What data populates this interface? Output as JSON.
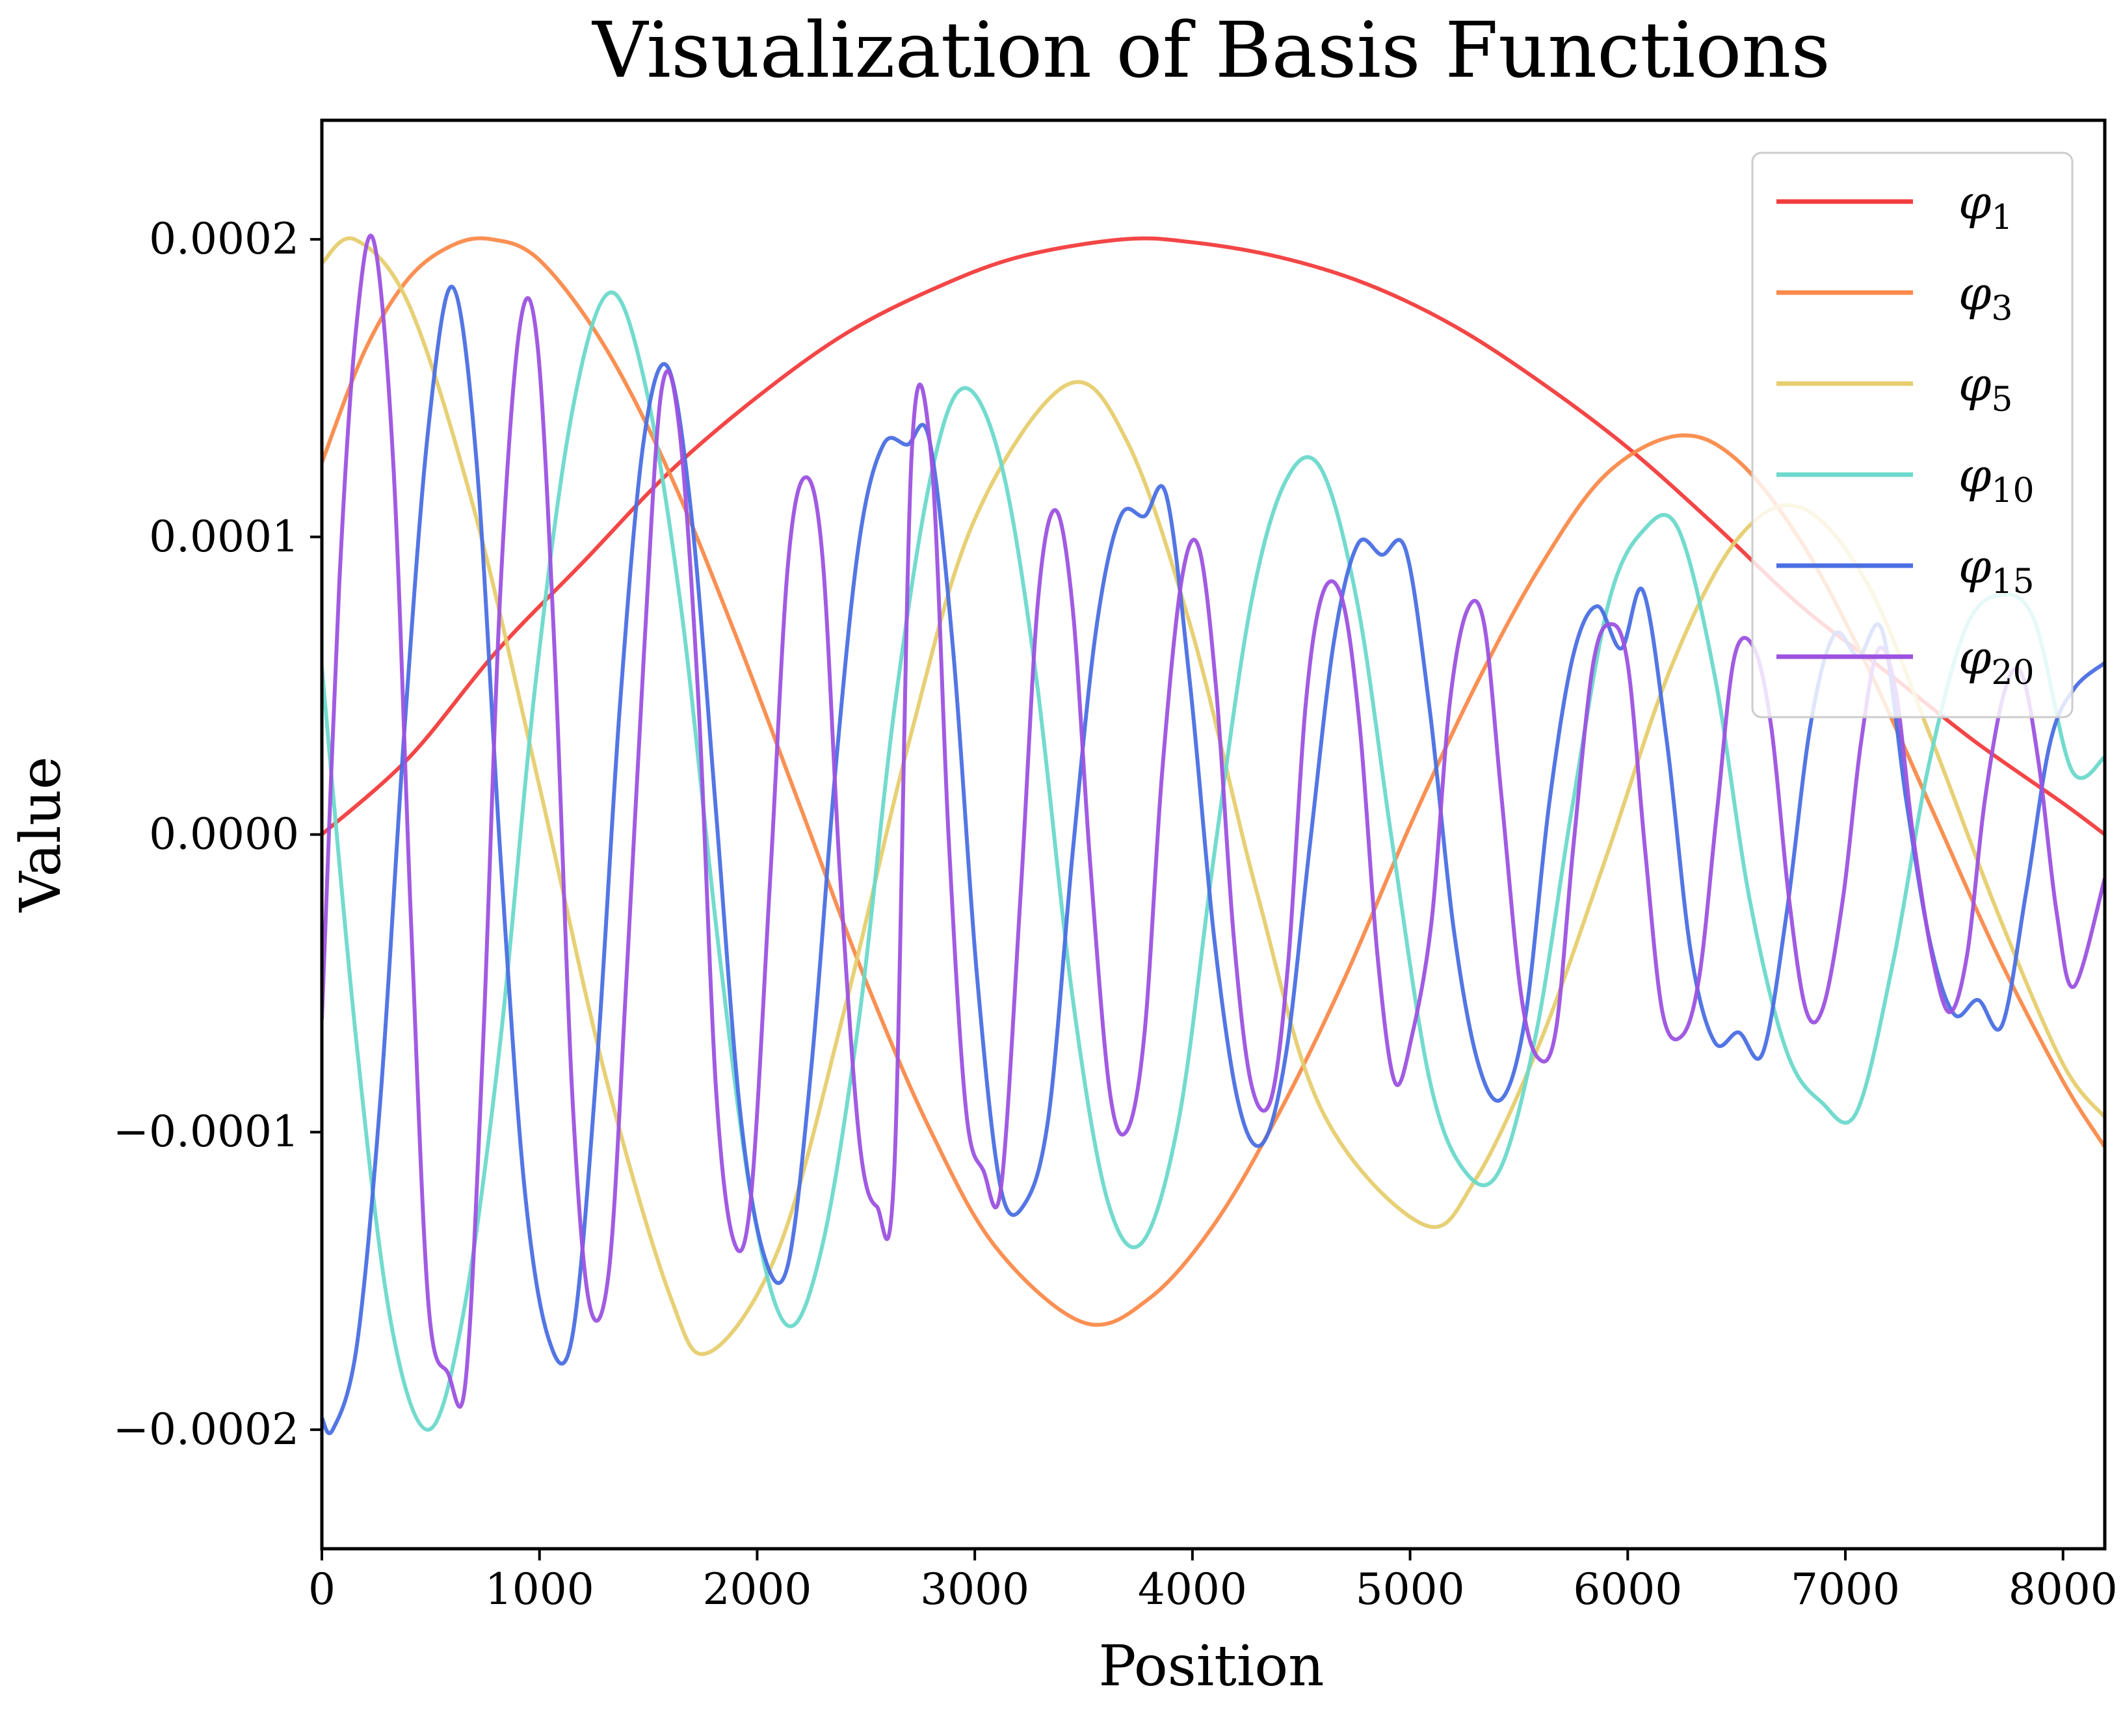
{
  "chart_data": {
    "type": "line",
    "title": "Visualization of Basis Functions",
    "xlabel": "Position",
    "ylabel": "Value",
    "xlim": [
      0,
      8192
    ],
    "ylim": [
      -0.00024,
      0.00024
    ],
    "xticks": [
      0,
      1000,
      2000,
      3000,
      4000,
      5000,
      6000,
      7000,
      8000
    ],
    "xtick_labels": [
      "0",
      "1000",
      "2000",
      "3000",
      "4000",
      "5000",
      "6000",
      "7000",
      "8000"
    ],
    "yticks": [
      0.0002,
      0.0001,
      0.0,
      -0.0001,
      -0.0002
    ],
    "ytick_labels": [
      "0.0002",
      "0.0001",
      "0.0000",
      "−0.0001",
      "−0.0002"
    ],
    "grid": false,
    "legend_position": "top-right",
    "series": [
      {
        "name": "φ1",
        "color": "#f23c3c",
        "x": [
          0,
          400,
          800,
          1200,
          1600,
          2000,
          2400,
          2800,
          3200,
          3680,
          4000,
          4400,
          4800,
          5200,
          5600,
          6000,
          6400,
          6800,
          7200,
          7600,
          8000,
          8192
        ],
        "y": [
          0.0,
          2.58e-05,
          6.13e-05,
          9.15e-05,
          0.000122,
          0.000147,
          0.000168,
          0.000183,
          0.000194,
          0.0002,
          0.000199,
          0.000194,
          0.000185,
          0.000171,
          0.000152,
          0.00013,
          0.000104,
          7.65e-05,
          5.4e-05,
          3.1e-05,
          1.05e-05,
          0.0
        ]
      },
      {
        "name": "φ3",
        "color": "#fa8a4a",
        "x": [
          0,
          200,
          400,
          600,
          780,
          1000,
          1300,
          1600,
          1900,
          2200,
          2500,
          2800,
          3100,
          3500,
          3800,
          4100,
          4400,
          4700,
          5000,
          5300,
          5600,
          5900,
          6230,
          6500,
          6800,
          7100,
          7400,
          7700,
          8000,
          8192
        ],
        "y": [
          0.000125,
          0.000163,
          0.000187,
          0.000198,
          0.0002,
          0.000193,
          0.000164,
          0.000121,
          6.72e-05,
          9e-06,
          -4.93e-05,
          -0.0001,
          -0.000139,
          -0.000164,
          -0.000156,
          -0.000131,
          -9.33e-05,
          -4.82e-05,
          3e-06,
          4.99e-05,
          9.03e-05,
          0.000121,
          0.000134,
          0.000126,
          9.8e-05,
          5.67e-05,
          8.1e-06,
          -4.06e-05,
          -8.29e-05,
          -0.000105
        ]
      },
      {
        "name": "φ5",
        "color": "#e6ce6e",
        "x": [
          0,
          150,
          400,
          700,
          1000,
          1300,
          1600,
          1780,
          2100,
          2400,
          2700,
          3000,
          3420,
          3700,
          4000,
          4300,
          4600,
          5060,
          5300,
          5600,
          5900,
          6200,
          6500,
          6790,
          7100,
          7400,
          7700,
          8000,
          8192
        ],
        "y": [
          0.000192,
          0.0002,
          0.000178,
          0.000109,
          1.61e-05,
          -8.03e-05,
          -0.000155,
          -0.000174,
          -0.000139,
          -5.93e-05,
          3.17e-05,
          0.000106,
          0.000151,
          0.000132,
          6.77e-05,
          -2.05e-05,
          -9.35e-05,
          -0.000131,
          -0.000116,
          -6.93e-05,
          -7.8e-06,
          5.63e-05,
          9.89e-05,
          0.00011,
          8.44e-05,
          3.13e-05,
          -2.63e-05,
          -7.71e-05,
          -9.5e-05
        ]
      },
      {
        "name": "φ10",
        "color": "#6bd9cb",
        "x": [
          0,
          160,
          320,
          490,
          650,
          820,
          980,
          1150,
          1320,
          1480,
          1650,
          1820,
          1980,
          2140,
          2300,
          2470,
          2630,
          2800,
          2950,
          3120,
          3280,
          3450,
          3610,
          3770,
          3940,
          4100,
          4270,
          4430,
          4590,
          4760,
          4920,
          5090,
          5250,
          5410,
          5580,
          5740,
          5910,
          6070,
          6230,
          6400,
          6560,
          6730,
          6890,
          7050,
          7220,
          7380,
          7550,
          7710,
          7870,
          8040,
          8192
        ],
        "y": [
          5.61e-05,
          -7.07e-05,
          -0.000165,
          -0.0002,
          -0.000161,
          -6.94e-05,
          4.97e-05,
          0.000142,
          0.000182,
          0.000153,
          7.64e-05,
          -3.6e-05,
          -0.000125,
          -0.000165,
          -0.000138,
          -6.09e-05,
          4.18e-05,
          0.000121,
          0.00015,
          0.000125,
          5.41e-05,
          -5.52e-05,
          -0.000123,
          -0.000137,
          -9.47e-05,
          -6.8e-06,
          7.78e-05,
          0.000119,
          0.000123,
          7.68e-05,
          -3.7e-06,
          -8.25e-05,
          -0.000113,
          -0.000113,
          -6.65e-05,
          7e-06,
          7.72e-05,
          0.000102,
          0.000103,
          5.32e-05,
          -2.17e-05,
          -7.28e-05,
          -8.99e-05,
          -9.35e-05,
          -4.26e-05,
          2.22e-05,
          6.88e-05,
          8.04e-05,
          7.17e-05,
          2.16e-05,
          2.6e-05
        ]
      },
      {
        "name": "φ15",
        "color": "#4a6fe3",
        "x": [
          0,
          50,
          160,
          270,
          380,
          490,
          600,
          710,
          820,
          930,
          1040,
          1150,
          1260,
          1370,
          1480,
          1590,
          1700,
          1810,
          1920,
          2030,
          2140,
          2250,
          2360,
          2470,
          2580,
          2690,
          2790,
          2900,
          3010,
          3120,
          3230,
          3340,
          3450,
          3560,
          3670,
          3780,
          3880,
          3990,
          4100,
          4210,
          4320,
          4430,
          4540,
          4650,
          4760,
          4870,
          4980,
          5090,
          5200,
          5310,
          5420,
          5530,
          5640,
          5750,
          5860,
          5970,
          6070,
          6180,
          6290,
          6400,
          6510,
          6620,
          6730,
          6840,
          6950,
          7060,
          7170,
          7280,
          7390,
          7500,
          7610,
          7720,
          7830,
          7940,
          8050,
          8192
        ],
        "y": [
          -0.000196,
          -0.0002,
          -0.000172,
          -8.78e-05,
          3.58e-05,
          0.000137,
          0.000184,
          0.000126,
          -6.7e-06,
          -0.000118,
          -0.000169,
          -0.000169,
          -8.12e-05,
          4.39e-05,
          0.000133,
          0.000157,
          0.000106,
          8.7e-06,
          -9.19e-05,
          -0.000141,
          -0.000145,
          -7.74e-05,
          2.17e-05,
          9.91e-05,
          0.000131,
          0.000131,
          0.000133,
          6.23e-05,
          -4.74e-05,
          -0.000119,
          -0.000124,
          -9.41e-05,
          -5.8e-06,
          7.02e-05,
          0.000107,
          0.000107,
          0.000114,
          4.99e-05,
          -3.47e-05,
          -8.99e-05,
          -0.000104,
          -7.37e-05,
          -3.3e-06,
          6.48e-05,
          9.76e-05,
          9.4e-05,
          9.56e-05,
          4.21e-05,
          -3.15e-05,
          -7.61e-05,
          -8.89e-05,
          -6.12e-05,
          1.08e-05,
          6.03e-05,
          7.67e-05,
          6.25e-05,
          8.19e-05,
          3.12e-05,
          -3.97e-05,
          -6.98e-05,
          -6.65e-05,
          -7.35e-05,
          -2.66e-05,
          3.69e-05,
          6.72e-05,
          5.99e-05,
          6.84e-05,
          1.14e-05,
          -3.65e-05,
          -6.04e-05,
          -5.56e-05,
          -6.41e-05,
          -1.96e-05,
          3.06e-05,
          4.89e-05,
          5.77e-05
        ]
      },
      {
        "name": "φ20",
        "color": "#9c52e0",
        "x": [
          0,
          80,
          160,
          240,
          330,
          410,
          490,
          580,
          660,
          740,
          820,
          910,
          990,
          1070,
          1150,
          1230,
          1320,
          1400,
          1480,
          1560,
          1640,
          1730,
          1810,
          1890,
          1970,
          2060,
          2140,
          2220,
          2300,
          2380,
          2470,
          2550,
          2630,
          2710,
          2800,
          2880,
          2960,
          3040,
          3120,
          3210,
          3290,
          3370,
          3450,
          3530,
          3620,
          3700,
          3780,
          3860,
          3950,
          4030,
          4110,
          4190,
          4270,
          4360,
          4440,
          4520,
          4600,
          4690,
          4770,
          4850,
          4930,
          5010,
          5100,
          5180,
          5260,
          5340,
          5420,
          5510,
          5590,
          5670,
          5750,
          5840,
          5920,
          6000,
          6080,
          6160,
          6250,
          6330,
          6410,
          6490,
          6580,
          6660,
          6740,
          6820,
          6900,
          6990,
          7070,
          7150,
          7230,
          7310,
          7400,
          7480,
          7560,
          7640,
          7730,
          7810,
          7890,
          7970,
          8050,
          8192
        ],
        "y": [
          -6.21e-05,
          8.43e-05,
          0.000172,
          0.000199,
          0.000122,
          -2.96e-05,
          -0.000158,
          -0.000181,
          -0.000184,
          -7.16e-05,
          8.17e-05,
          0.000171,
          0.000165,
          6.07e-05,
          -8.66e-05,
          -0.000158,
          -0.000146,
          -4.77e-05,
          6.1e-05,
          0.000149,
          0.000138,
          4.51e-05,
          -8.43e-05,
          -0.000136,
          -0.000123,
          -1.48e-05,
          8.94e-05,
          0.00012,
          9.36e-05,
          -1.25e-05,
          -0.000103,
          -0.000125,
          -0.000113,
          0.000128,
          0.000127,
          -1.4e-06,
          -9.28e-05,
          -0.000113,
          -0.000119,
          -2.09e-05,
          7.83e-05,
          0.000109,
          7.58e-05,
          -9.6e-06,
          -8.63e-05,
          -9.94e-05,
          -6.67e-05,
          2.01e-05,
          8.53e-05,
          9.63e-05,
          4.81e-05,
          -3.47e-05,
          -8.37e-05,
          -8.92e-05,
          -4.31e-05,
          4.33e-05,
          8.13e-05,
          7.86e-05,
          3.53e-05,
          -4.05e-05,
          -8.32e-05,
          -6.72e-05,
          -2.83e-05,
          4.26e-05,
          7.49e-05,
          7.08e-05,
          1.26e-05,
          -5.38e-05,
          -7.52e-05,
          -6.58e-05,
          -4.2e-06,
          5.68e-05,
          7.07e-05,
          5.73e-05,
          -5.3e-06,
          -5.99e-05,
          -6.76e-05,
          -4.72e-05,
          7.6e-06,
          5.96e-05,
          6.27e-05,
          3.59e-05,
          -2.09e-05,
          -5.92e-05,
          -5.76e-05,
          -2.09e-05,
          2.98e-05,
          6.2e-05,
          4.89e-05,
          3e-07,
          -4.13e-05,
          -5.97e-05,
          -4.01e-05,
          1.1e-05,
          4.78e-05,
          5.41e-05,
          2.31e-05,
          -2.58e-05,
          -5.11e-05,
          -1.47e-05
        ]
      }
    ]
  }
}
